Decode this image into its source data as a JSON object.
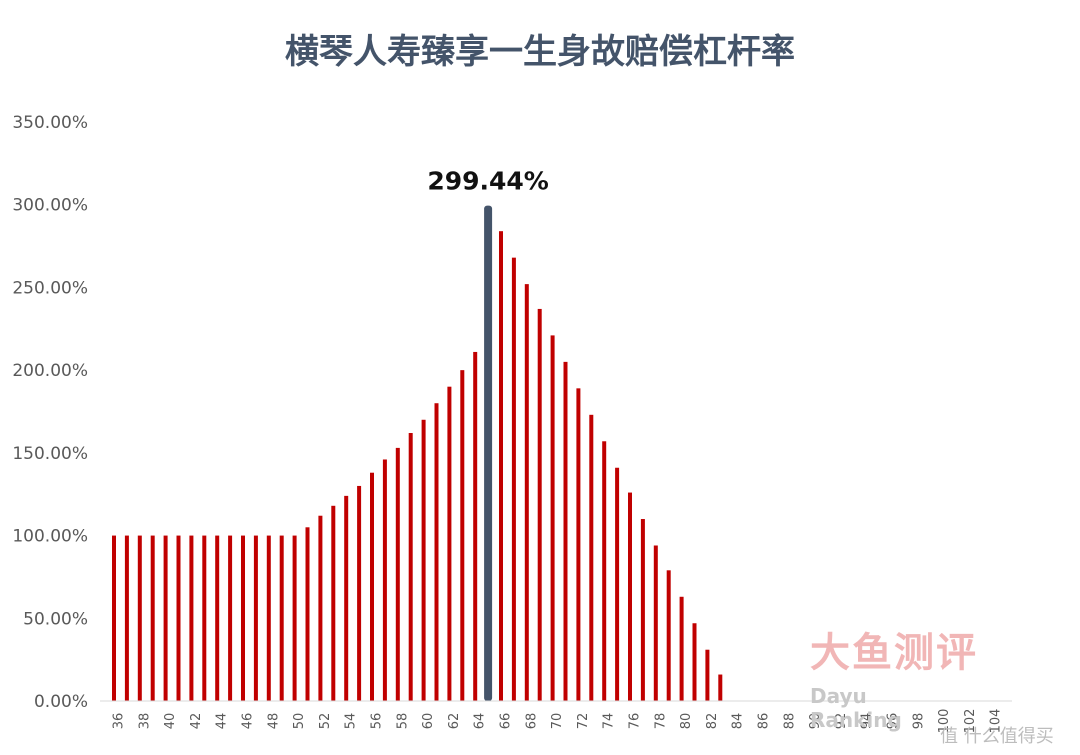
{
  "chart_data": {
    "type": "bar",
    "title": "横琴人寿臻享一生身故赔偿杠杆率",
    "xlabel": "",
    "ylabel": "",
    "ylim": [
      0,
      350
    ],
    "y_ticks": [
      0,
      50,
      100,
      150,
      200,
      250,
      300,
      350
    ],
    "y_tick_labels": [
      "0.00%",
      "50.00%",
      "100.00%",
      "150.00%",
      "200.00%",
      "250.00%",
      "300.00%",
      "350.00%"
    ],
    "x_tick_labels": [
      "36",
      "38",
      "40",
      "42",
      "44",
      "46",
      "48",
      "50",
      "52",
      "54",
      "56",
      "58",
      "60",
      "62",
      "64",
      "66",
      "68",
      "70",
      "72",
      "74",
      "76",
      "78",
      "80",
      "82",
      "84",
      "86",
      "88",
      "90",
      "92",
      "94",
      "96",
      "98",
      "100",
      "102",
      "104"
    ],
    "categories": [
      36,
      37,
      38,
      39,
      40,
      41,
      42,
      43,
      44,
      45,
      46,
      47,
      48,
      49,
      50,
      51,
      52,
      53,
      54,
      55,
      56,
      57,
      58,
      59,
      60,
      61,
      62,
      63,
      64,
      65,
      66,
      67,
      68,
      69,
      70,
      71,
      72,
      73,
      74,
      75,
      76,
      77,
      78,
      79,
      80,
      81,
      82,
      83,
      84,
      85,
      86,
      87,
      88,
      89,
      90,
      91,
      92,
      93,
      94,
      95,
      96,
      97,
      98,
      99,
      100,
      101,
      102,
      103,
      104
    ],
    "values": [
      100,
      100,
      100,
      100,
      100,
      100,
      100,
      100,
      100,
      100,
      100,
      100,
      100,
      100,
      100,
      105,
      112,
      118,
      124,
      130,
      138,
      146,
      153,
      162,
      170,
      180,
      190,
      200,
      211,
      299.44,
      284,
      268,
      252,
      237,
      221,
      205,
      189,
      173,
      157,
      141,
      126,
      110,
      94,
      79,
      63,
      47,
      31,
      16,
      0,
      0,
      0,
      0,
      0,
      0,
      0,
      0,
      0,
      0,
      0,
      0,
      0,
      0,
      0,
      0,
      0,
      0,
      0,
      0,
      0
    ],
    "highlight": {
      "category": 65,
      "value": 299.44,
      "label": "299.44%",
      "color": "#44546a"
    },
    "bar_color": "#c00000",
    "grid": false
  },
  "watermark": {
    "cn": "大鱼测评",
    "en": "Dayu Ranking"
  },
  "corner_mark": "值 什么值得买"
}
